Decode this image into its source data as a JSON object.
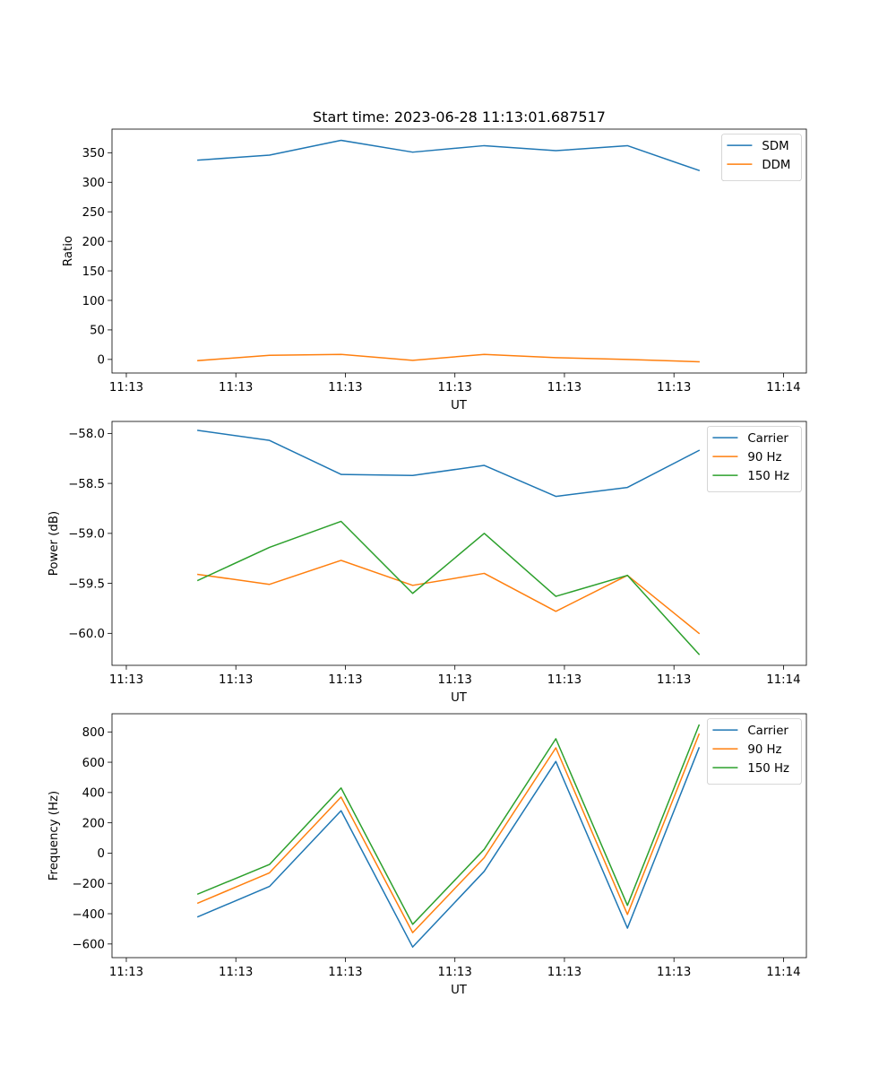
{
  "figure": {
    "title": "Start time: 2023-06-28 11:13:01.687517"
  },
  "colors": {
    "blue": "#1f77b4",
    "orange": "#ff7f0e",
    "green": "#2ca02c"
  },
  "chart_data": [
    {
      "type": "line",
      "title": "Start time: 2023-06-28 11:13:01.687517",
      "xlabel": "UT",
      "ylabel": "Ratio",
      "x": [
        1,
        2,
        3,
        4,
        5,
        6,
        7,
        8
      ],
      "xlim": [
        -0.2,
        9.5
      ],
      "xticks": [
        0,
        1.53,
        3.06,
        4.59,
        6.12,
        7.65,
        9.18
      ],
      "xtick_labels": [
        "11:13",
        "11:13",
        "11:13",
        "11:13",
        "11:13",
        "11:13",
        "11:14"
      ],
      "ylim": [
        -23,
        390
      ],
      "yticks": [
        0,
        50,
        100,
        150,
        200,
        250,
        300,
        350
      ],
      "ytick_labels": [
        "0",
        "50",
        "100",
        "150",
        "200",
        "250",
        "300",
        "350"
      ],
      "legend_position": "upper right",
      "series": [
        {
          "name": "SDM",
          "color": "#1f77b4",
          "values": [
            337.5,
            346,
            371,
            351,
            362,
            353.5,
            362,
            320
          ]
        },
        {
          "name": "DDM",
          "color": "#ff7f0e",
          "values": [
            -2,
            7,
            8.5,
            -1.5,
            8.5,
            3,
            0,
            -4
          ]
        }
      ]
    },
    {
      "type": "line",
      "title": "",
      "xlabel": "UT",
      "ylabel": "Power (dB)",
      "x": [
        1,
        2,
        3,
        4,
        5,
        6,
        7,
        8
      ],
      "xlim": [
        -0.2,
        9.5
      ],
      "xticks": [
        0,
        1.53,
        3.06,
        4.59,
        6.12,
        7.65,
        9.18
      ],
      "xtick_labels": [
        "11:13",
        "11:13",
        "11:13",
        "11:13",
        "11:13",
        "11:13",
        "11:14"
      ],
      "ylim": [
        -60.32,
        -57.88
      ],
      "yticks": [
        -60.0,
        -59.5,
        -59.0,
        -58.5,
        -58.0
      ],
      "ytick_labels": [
        "−60.0",
        "−59.5",
        "−59.0",
        "−58.5",
        "−58.0"
      ],
      "legend_position": "upper right",
      "series": [
        {
          "name": "Carrier",
          "color": "#1f77b4",
          "values": [
            -57.97,
            -58.07,
            -58.41,
            -58.42,
            -58.32,
            -58.63,
            -58.54,
            -58.17
          ]
        },
        {
          "name": "90 Hz",
          "color": "#ff7f0e",
          "values": [
            -59.41,
            -59.51,
            -59.27,
            -59.52,
            -59.4,
            -59.78,
            -59.42,
            -60.0
          ]
        },
        {
          "name": "150 Hz",
          "color": "#2ca02c",
          "values": [
            -59.47,
            -59.14,
            -58.88,
            -59.6,
            -59.0,
            -59.63,
            -59.42,
            -60.21
          ]
        }
      ]
    },
    {
      "type": "line",
      "title": "",
      "xlabel": "UT",
      "ylabel": "Frequency (Hz)",
      "x": [
        1,
        2,
        3,
        4,
        5,
        6,
        7,
        8
      ],
      "xlim": [
        -0.2,
        9.5
      ],
      "xticks": [
        0,
        1.53,
        3.06,
        4.59,
        6.12,
        7.65,
        9.18
      ],
      "xtick_labels": [
        "11:13",
        "11:13",
        "11:13",
        "11:13",
        "11:13",
        "11:13",
        "11:14"
      ],
      "ylim": [
        -690,
        920
      ],
      "yticks": [
        -600,
        -400,
        -200,
        0,
        200,
        400,
        600,
        800
      ],
      "ytick_labels": [
        "−600",
        "−400",
        "−200",
        "0",
        "200",
        "400",
        "600",
        "800"
      ],
      "legend_position": "upper right",
      "series": [
        {
          "name": "Carrier",
          "color": "#1f77b4",
          "values": [
            -420,
            -220,
            280,
            -620,
            -120,
            605,
            -495,
            695
          ]
        },
        {
          "name": "90 Hz",
          "color": "#ff7f0e",
          "values": [
            -330,
            -130,
            370,
            -525,
            -30,
            695,
            -405,
            785
          ]
        },
        {
          "name": "150 Hz",
          "color": "#2ca02c",
          "values": [
            -270,
            -75,
            430,
            -470,
            25,
            755,
            -345,
            845
          ]
        }
      ]
    }
  ]
}
